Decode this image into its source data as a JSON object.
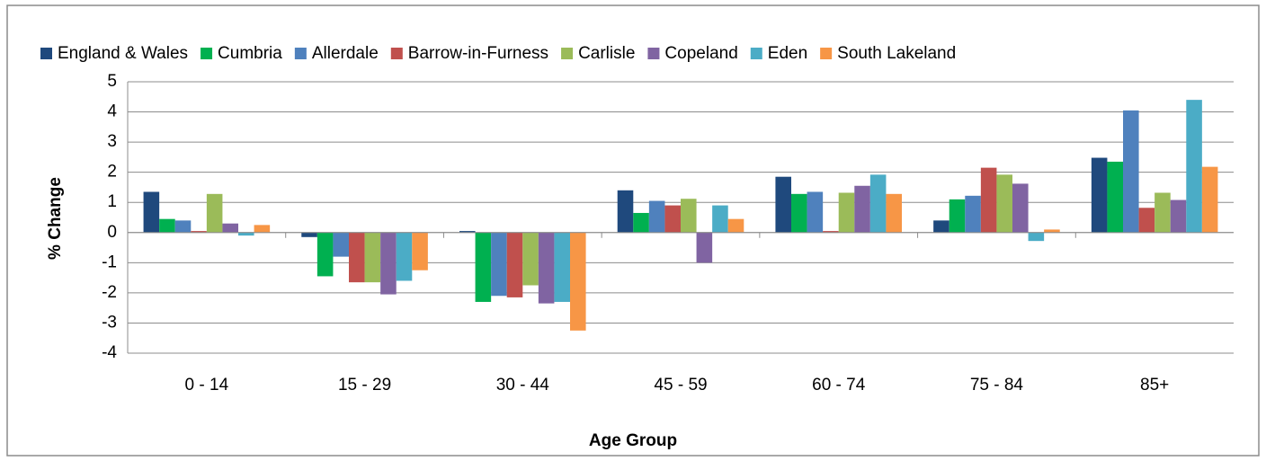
{
  "chart_data": {
    "type": "bar",
    "xlabel": "Age Group",
    "ylabel": "% Change",
    "categories": [
      "0 - 14",
      "15 - 29",
      "30 - 44",
      "45 - 59",
      "60 - 74",
      "75 - 84",
      "85+"
    ],
    "series": [
      {
        "name": "England & Wales",
        "color": "#1f497d",
        "values": [
          1.35,
          -0.15,
          0.05,
          1.4,
          1.85,
          0.4,
          2.48
        ]
      },
      {
        "name": "Cumbria",
        "color": "#00b050",
        "values": [
          0.45,
          -1.45,
          -2.3,
          0.65,
          1.28,
          1.1,
          2.35
        ]
      },
      {
        "name": "Allerdale",
        "color": "#4f81bd",
        "values": [
          0.4,
          -0.8,
          -2.1,
          1.05,
          1.35,
          1.22,
          4.05
        ]
      },
      {
        "name": "Barrow-in-Furness",
        "color": "#c0504d",
        "values": [
          0.05,
          -1.65,
          -2.15,
          0.9,
          0.05,
          2.15,
          0.82
        ]
      },
      {
        "name": "Carlisle",
        "color": "#9bbb59",
        "values": [
          1.28,
          -1.65,
          -1.75,
          1.12,
          1.32,
          1.92,
          1.32
        ]
      },
      {
        "name": "Copeland",
        "color": "#8064a2",
        "values": [
          0.3,
          -2.05,
          -2.35,
          -1.0,
          1.55,
          1.62,
          1.08
        ]
      },
      {
        "name": "Eden",
        "color": "#4bacc6",
        "values": [
          -0.1,
          -1.6,
          -2.3,
          0.9,
          1.92,
          -0.28,
          4.4
        ]
      },
      {
        "name": "South Lakeland",
        "color": "#f79646",
        "values": [
          0.25,
          -1.25,
          -3.25,
          0.45,
          1.28,
          0.1,
          2.18
        ]
      }
    ],
    "ylim": [
      -4,
      5
    ],
    "yticks": [
      -4,
      -3,
      -2,
      -1,
      0,
      1,
      2,
      3,
      4,
      5
    ],
    "grid": true,
    "legend": "top"
  }
}
